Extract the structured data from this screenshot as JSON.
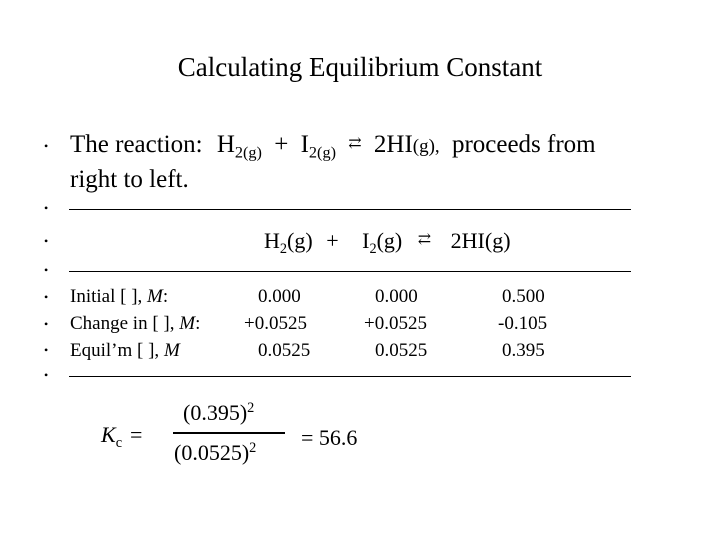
{
  "title": "Calculating Equilibrium Constant",
  "bullets": {
    "b1": "•",
    "b2": "•",
    "b3": "•",
    "b4": "•",
    "b5": "•",
    "b6": "•",
    "b7": "•",
    "b8": "•"
  },
  "reaction_line": {
    "intro": "The reaction:",
    "h2": "H",
    "h2_sub": "2(g)",
    "plus": "+",
    "i2": "I",
    "i2_sub": "2(g)",
    "arrow": "⇄",
    "hi": "2HI",
    "hi_state": "(g),",
    "tail": "proceeds from",
    "line2": "right to left."
  },
  "header_equation": {
    "h2": "H",
    "h2_sub": "2",
    "h2_state": "(g)",
    "plus": "+",
    "i2": "I",
    "i2_sub": "2",
    "i2_state": "(g)",
    "arrow": "⇄",
    "hi": "2HI",
    "hi_state": "(g)"
  },
  "table": {
    "rows": [
      {
        "label_prefix": "Initial [  ], ",
        "label_unit": "M",
        "label_suffix": ":",
        "c1": "0.000",
        "c2": "0.000",
        "c3": "0.500"
      },
      {
        "label_prefix": "Change in [  ], ",
        "label_unit": "M",
        "label_suffix": ":",
        "c1": "+0.0525",
        "c2": "+0.0525",
        "c3": "-0.105"
      },
      {
        "label_prefix": "Equil’m [  ], ",
        "label_unit": "M",
        "label_suffix": "",
        "c1": "0.0525",
        "c2": "0.0525",
        "c3": "0.395"
      }
    ]
  },
  "kc": {
    "label": "K",
    "label_sub": "c",
    "equals": "=",
    "numerator": "(0.395)",
    "numerator_exp": "2",
    "denominator": "(0.0525)",
    "denominator_exp": "2",
    "result": "= 56.6"
  }
}
